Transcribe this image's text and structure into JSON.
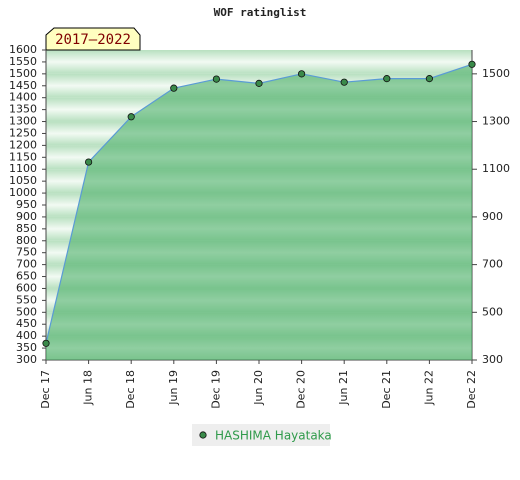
{
  "chart_data": {
    "type": "line",
    "title": "WOF ratinglist",
    "annotation": "2017–2022",
    "categories": [
      "Dec 17",
      "Jun 18",
      "Dec 18",
      "Jun 19",
      "Dec 19",
      "Jun 20",
      "Dec 20",
      "Jun 21",
      "Dec 21",
      "Jun 22",
      "Dec 22"
    ],
    "series": [
      {
        "name": "HASHIMA Hayataka",
        "color": "#5a9bd5",
        "fill": "#4fb06a",
        "marker": "#3a8a4a",
        "values": [
          370,
          1130,
          1320,
          1440,
          1478,
          1460,
          1500,
          1465,
          1480,
          1480,
          1540
        ]
      }
    ],
    "ylim": [
      300,
      1600
    ],
    "yticks": [
      300,
      350,
      400,
      450,
      500,
      550,
      600,
      650,
      700,
      750,
      800,
      850,
      900,
      950,
      1000,
      1050,
      1100,
      1150,
      1200,
      1250,
      1300,
      1350,
      1400,
      1450,
      1500,
      1550,
      1600
    ],
    "y2lim": [
      300,
      1600
    ],
    "y2ticks": [
      300,
      500,
      700,
      900,
      1100,
      1300,
      1500
    ]
  }
}
